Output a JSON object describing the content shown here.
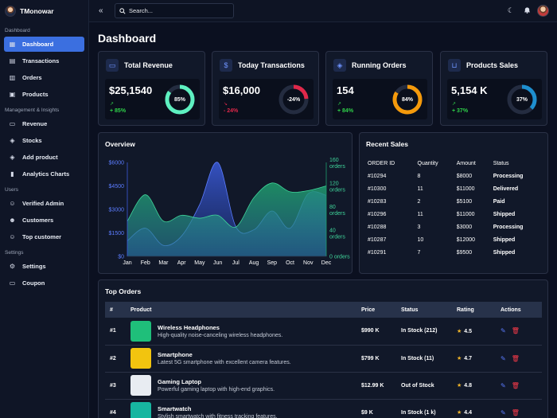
{
  "app": {
    "brand_name": "TMonowar",
    "page_title": "Dashboard"
  },
  "sidebar": {
    "sections": [
      {
        "title": "Dashboard",
        "items": [
          {
            "label": "Dashboard",
            "icon": "grid-icon",
            "active": true
          },
          {
            "label": "Transactions",
            "icon": "receipt-icon"
          },
          {
            "label": "Orders",
            "icon": "clipboard-icon"
          },
          {
            "label": "Products",
            "icon": "box-icon"
          }
        ]
      },
      {
        "title": "Management & Insights",
        "items": [
          {
            "label": "Revenue",
            "icon": "money-icon"
          },
          {
            "label": "Stocks",
            "icon": "cube-icon"
          },
          {
            "label": "Add product",
            "icon": "cube-plus-icon"
          },
          {
            "label": "Analytics Charts",
            "icon": "bar-chart-icon"
          }
        ]
      },
      {
        "title": "Users",
        "items": [
          {
            "label": "Verified Admin",
            "icon": "user-check-icon"
          },
          {
            "label": "Customers",
            "icon": "users-icon"
          },
          {
            "label": "Top customer",
            "icon": "user-star-icon"
          }
        ]
      },
      {
        "title": "Settings",
        "items": [
          {
            "label": "Settings",
            "icon": "gear-icon"
          },
          {
            "label": "Coupon",
            "icon": "ticket-icon"
          }
        ]
      }
    ]
  },
  "topbar": {
    "search_placeholder": "Search..."
  },
  "stats": [
    {
      "title": "Total Revenue",
      "value": "$25,1540",
      "change": "+ 85%",
      "percent": 85,
      "percent_label": "85%",
      "trend": "up",
      "ring_color": "#5ef0c0",
      "change_color": "#2fd24a",
      "icon": "card-icon"
    },
    {
      "title": "Today Transactions",
      "value": "$16,000",
      "change": "- 24%",
      "percent": 24,
      "percent_label": "-24%",
      "trend": "down",
      "ring_color": "#e0284a",
      "change_color": "#e0284a",
      "icon": "dollar-icon"
    },
    {
      "title": "Running Orders",
      "value": "154",
      "change": "+ 84%",
      "percent": 84,
      "percent_label": "84%",
      "trend": "up",
      "ring_color": "#f59a0b",
      "change_color": "#2fd24a",
      "icon": "cube-icon"
    },
    {
      "title": "Products Sales",
      "value": "5,154 K",
      "change": "+ 37%",
      "percent": 37,
      "percent_label": "37%",
      "trend": "up",
      "ring_color": "#1e8fcf",
      "change_color": "#2fd24a",
      "icon": "cart-icon"
    }
  ],
  "overview": {
    "title": "Overview",
    "chart_data": {
      "type": "area",
      "categories": [
        "Jan",
        "Feb",
        "Mar",
        "Apr",
        "May",
        "Jun",
        "Jul",
        "Aug",
        "Sep",
        "Oct",
        "Nov",
        "Dec"
      ],
      "series": [
        {
          "axis": "left",
          "color": "#3b5bdb",
          "values": [
            1000,
            1800,
            700,
            1300,
            3300,
            6000,
            1900,
            1700,
            2900,
            1800,
            4000,
            3900
          ]
        },
        {
          "axis": "right",
          "color": "#1f9e6c",
          "values": [
            60,
            105,
            60,
            70,
            65,
            70,
            50,
            100,
            125,
            110,
            112,
            120
          ]
        }
      ],
      "left_axis": {
        "ticks": [
          "$6000",
          "$4500",
          "$3000",
          "$1500",
          "$0"
        ],
        "min": 0,
        "max": 6000
      },
      "right_axis": {
        "ticks": [
          "160\norders",
          "120\norders",
          "80\norders",
          "40\norders",
          "0 orders"
        ],
        "min": 0,
        "max": 160
      }
    }
  },
  "recent_sales": {
    "title": "Recent Sales",
    "columns": [
      "ORDER ID",
      "Quantity",
      "Amount",
      "Status"
    ],
    "rows": [
      {
        "id": "#10294",
        "qty": "8",
        "amount": "$8000",
        "status": "Processing",
        "cls": "st-processing"
      },
      {
        "id": "#10300",
        "qty": "11",
        "amount": "$11000",
        "status": "Delivered",
        "cls": "st-delivered"
      },
      {
        "id": "#10283",
        "qty": "2",
        "amount": "$5100",
        "status": "Paid",
        "cls": "st-paid"
      },
      {
        "id": "#10296",
        "qty": "11",
        "amount": "$11000",
        "status": "Shipped",
        "cls": "st-shipped"
      },
      {
        "id": "#10288",
        "qty": "3",
        "amount": "$3000",
        "status": "Processing",
        "cls": "st-processing"
      },
      {
        "id": "#10287",
        "qty": "10",
        "amount": "$12000",
        "status": "Shipped",
        "cls": "st-shipped"
      },
      {
        "id": "#10291",
        "qty": "7",
        "amount": "$9500",
        "status": "Shipped",
        "cls": "st-shipped"
      }
    ]
  },
  "top_orders": {
    "title": "Top Orders",
    "columns": [
      "#",
      "Product",
      "Price",
      "Status",
      "Rating",
      "Actions"
    ],
    "rows": [
      {
        "rank": "#1",
        "name": "Wireless Headphones",
        "desc": "High-quality noise-canceling wireless headphones.",
        "price": "$990 K",
        "status": "In Stock (212)",
        "out": false,
        "rating": "4.5",
        "thumb": "#1fbf7a"
      },
      {
        "rank": "#2",
        "name": "Smartphone",
        "desc": "Latest 5G smartphone with excellent camera features.",
        "price": "$799 K",
        "status": "In Stock (11)",
        "out": false,
        "rating": "4.7",
        "thumb": "#f2c40f"
      },
      {
        "rank": "#3",
        "name": "Gaming Laptop",
        "desc": "Powerful gaming laptop with high-end graphics.",
        "price": "$12.99 K",
        "status": "Out of Stock",
        "out": true,
        "rating": "4.8",
        "thumb": "#e8ecf2"
      },
      {
        "rank": "#4",
        "name": "Smartwatch",
        "desc": "Stylish smartwatch with fitness tracking features.",
        "price": "$9 K",
        "status": "In Stock (1 k)",
        "out": false,
        "rating": "4.4",
        "thumb": "#17b6a0"
      }
    ]
  }
}
